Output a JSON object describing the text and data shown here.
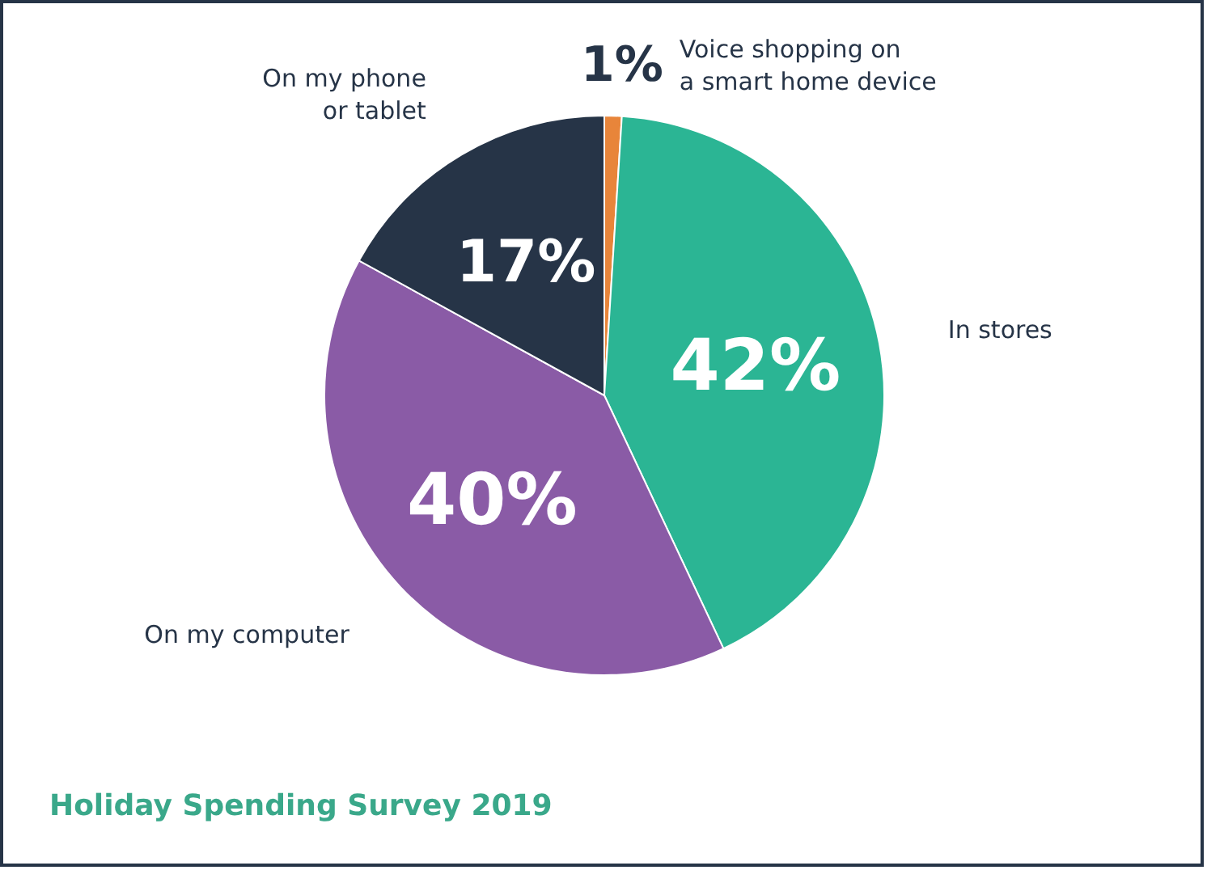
{
  "chart_data": {
    "type": "pie",
    "title": "Holiday Spending Survey 2019",
    "categories": [
      "Voice shopping on\na smart home device",
      "In stores",
      "On my computer",
      "On my phone\nor tablet"
    ],
    "values": [
      1,
      42,
      40,
      17
    ],
    "colors": [
      "#e8853a",
      "#2bb594",
      "#8a5ba6",
      "#263447"
    ],
    "value_labels": [
      "1%",
      "42%",
      "40%",
      "17%"
    ]
  }
}
